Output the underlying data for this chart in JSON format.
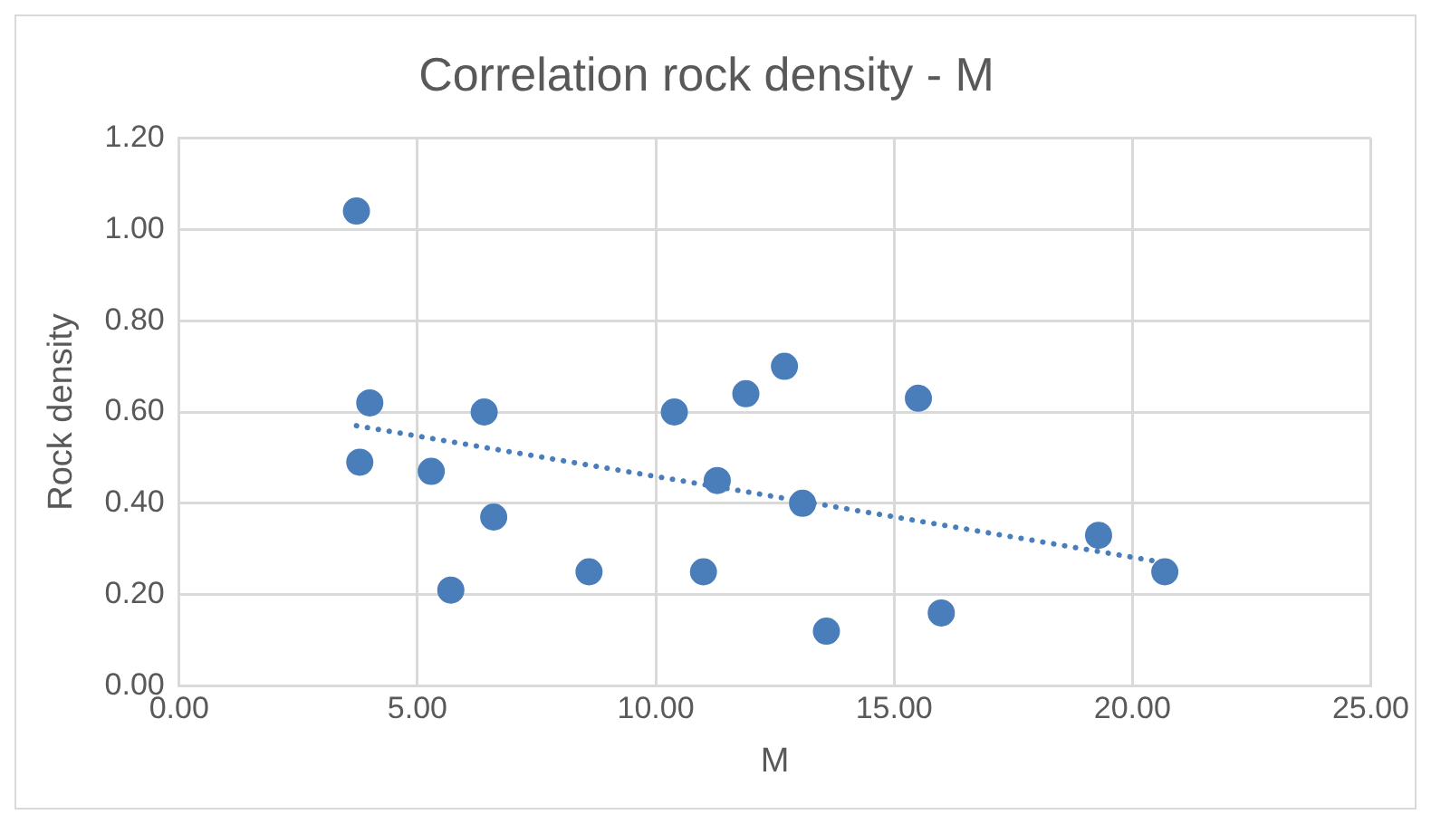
{
  "chart_data": {
    "type": "scatter",
    "title": "Correlation rock density - M",
    "xlabel": "M",
    "ylabel": "Rock density",
    "xlim": [
      0,
      25
    ],
    "xticks": [
      {
        "value": 0,
        "label": "0.00"
      },
      {
        "value": 5,
        "label": "5.00"
      },
      {
        "value": 10,
        "label": "10.00"
      },
      {
        "value": 15,
        "label": "15.00"
      },
      {
        "value": 20,
        "label": "20.00"
      },
      {
        "value": 25,
        "label": "25.00"
      }
    ],
    "ylim": [
      0,
      1.2
    ],
    "yticks": [
      {
        "value": 0,
        "label": "0.00"
      },
      {
        "value": 0.2,
        "label": "0.20"
      },
      {
        "value": 0.4,
        "label": "0.40"
      },
      {
        "value": 0.6,
        "label": "0.60"
      },
      {
        "value": 0.8,
        "label": "0.80"
      },
      {
        "value": 1,
        "label": "1.00"
      },
      {
        "value": 1.2,
        "label": "1.20"
      }
    ],
    "grid": true,
    "legend": false,
    "marker": "circle",
    "series": [
      {
        "color": "#4a7ebb",
        "x": [
          3.72,
          4.0,
          3.79,
          5.29,
          6.4,
          6.6,
          5.7,
          8.6,
          10.39,
          11.29,
          11.0,
          11.89,
          12.7,
          15.51,
          13.08,
          13.58,
          15.99,
          19.29,
          20.68
        ],
        "values": [
          1.04,
          0.62,
          0.49,
          0.47,
          0.6,
          0.37,
          0.21,
          0.25,
          0.6,
          0.45,
          0.25,
          0.64,
          0.7,
          0.63,
          0.4,
          0.12,
          0.16,
          0.33,
          0.25
        ]
      },
      {
        "type": "line",
        "color": "#4a7ebb",
        "x": [
          3.72,
          20.68
        ],
        "values": [
          0.57,
          0.27
        ],
        "line_style": "dotted",
        "marker": "none"
      }
    ]
  }
}
